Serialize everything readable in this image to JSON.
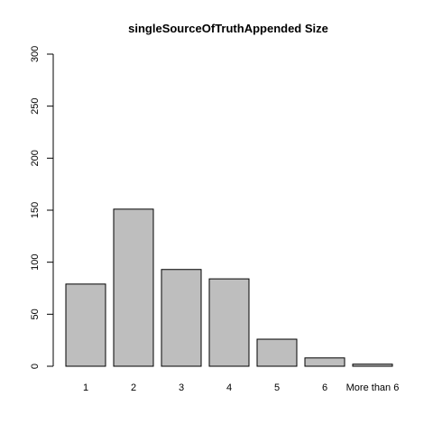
{
  "chart_data": {
    "type": "bar",
    "title": "singleSourceOfTruthAppended Size",
    "xlabel": "",
    "ylabel": "",
    "categories": [
      "1",
      "2",
      "3",
      "4",
      "5",
      "6",
      "More than 6"
    ],
    "values": [
      79,
      151,
      93,
      84,
      26,
      8,
      2
    ],
    "ylim": [
      0,
      300
    ],
    "yticks": [
      "0",
      "50",
      "100",
      "150",
      "200",
      "250",
      "300"
    ],
    "bar_color": "#bebebe",
    "grid": false,
    "legend": "none"
  }
}
